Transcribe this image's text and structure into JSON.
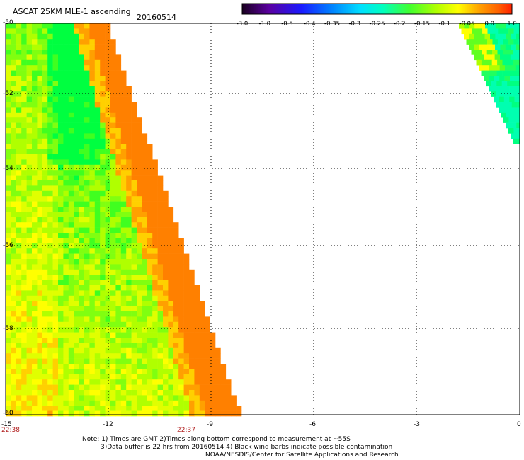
{
  "header": {
    "title": "ASCAT 25KM MLE-1 ascending",
    "date": "20160514"
  },
  "colorbar": {
    "labels": [
      "-3.0",
      "-1.0",
      "-0.5",
      "-0.4",
      "-0.35",
      "-0.3",
      "-0.25",
      "-0.2",
      "-0.15",
      "-0.1",
      "-0.05",
      "0.0",
      "1.0"
    ],
    "colors": [
      "#1a0020",
      "#5a00a0",
      "#1a1aff",
      "#0070ff",
      "#00b0ff",
      "#00ffff",
      "#00ff90",
      "#40ff20",
      "#a0ff00",
      "#ffff00",
      "#ffb000",
      "#ff7000",
      "#ff2000"
    ]
  },
  "axes": {
    "y_labels": [
      "-50",
      "-52",
      "-54",
      "-56",
      "-58",
      "-60"
    ],
    "x_labels": [
      "-15",
      "-12",
      "-9",
      "-6",
      "-3",
      "0"
    ],
    "times": [
      "22:38",
      "22:37"
    ]
  },
  "notes": {
    "line1": "Note: 1) Times are GMT 2)Times along bottom correspond to measurement at ~55S",
    "line2": "3)Data buffer is 22 hrs from 20160514 4) Black wind barbs indicate possible contamination",
    "line3": "NOAA/NESDIS/Center for Satellite Applications and Research"
  }
}
